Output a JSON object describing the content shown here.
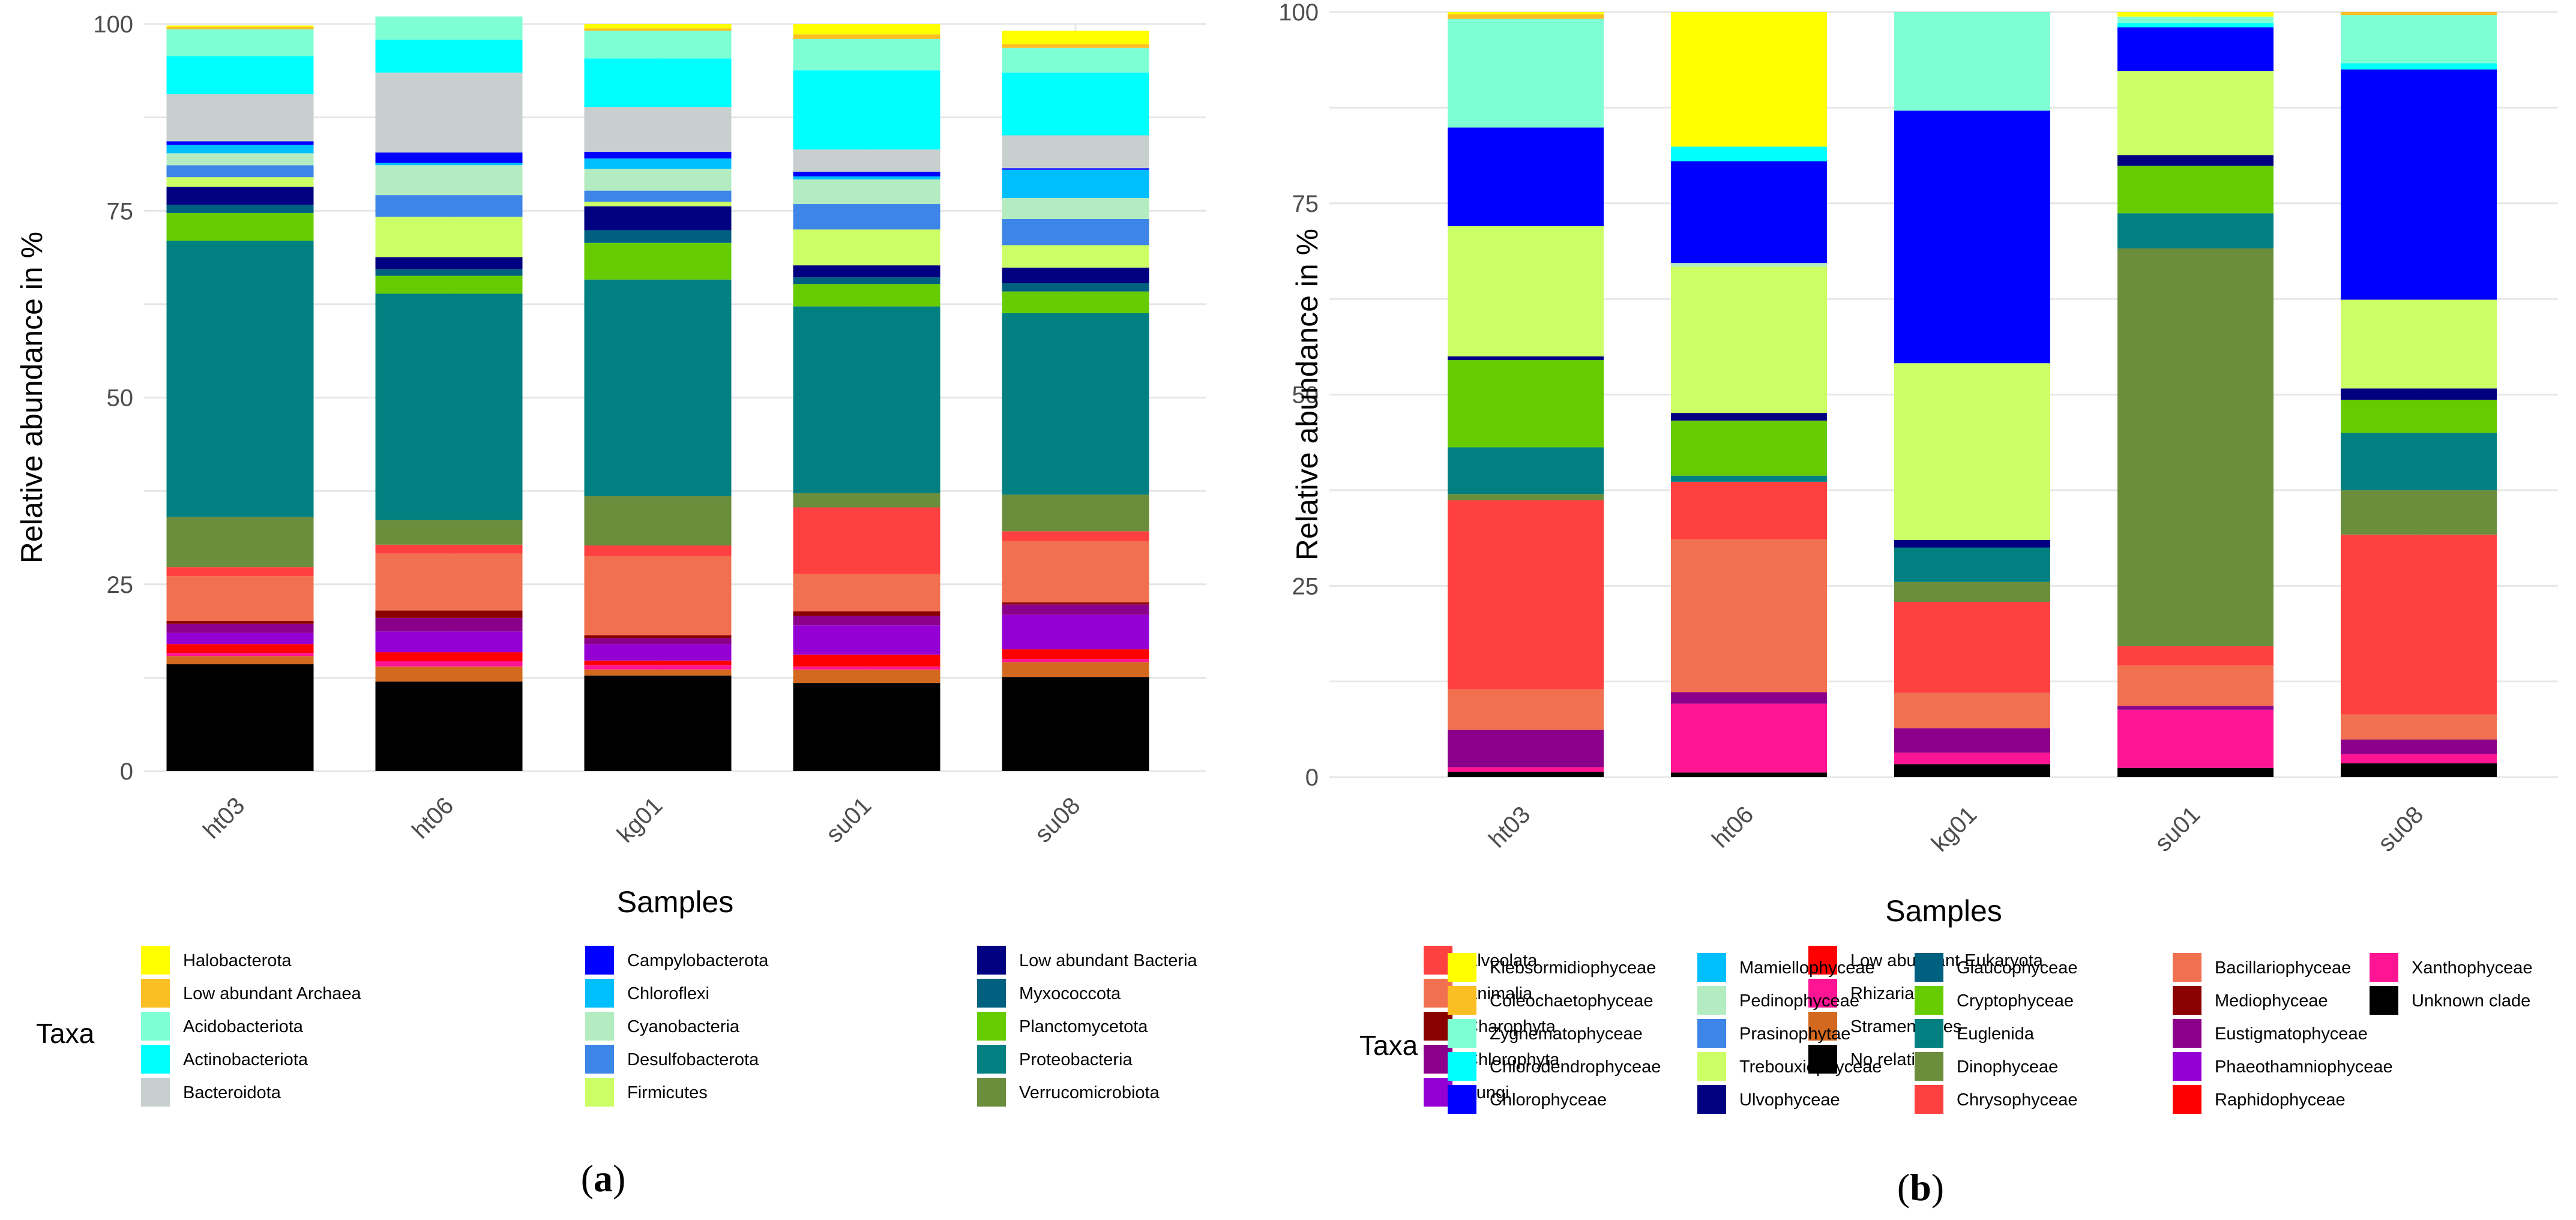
{
  "chart_data": [
    {
      "type": "bar",
      "stacked": true,
      "panel_label": "a",
      "xlabel": "Samples",
      "ylabel": "Relative abundance in %",
      "ylim": [
        0,
        100
      ],
      "yticks": [
        0,
        25,
        50,
        75,
        100
      ],
      "legend_title": "Taxa",
      "legend_position": "bottom",
      "grid": true,
      "categories": [
        "ht03",
        "ht06",
        "kg01",
        "su01",
        "su08"
      ],
      "series": [
        {
          "name": "No relative",
          "color": "#000000",
          "values": [
            14.3,
            12.0,
            12.8,
            11.8,
            12.6
          ]
        },
        {
          "name": "Stramenopiles",
          "color": "#d2691e",
          "values": [
            1.1,
            2.0,
            0.8,
            1.8,
            2.0
          ]
        },
        {
          "name": "Rhizaria",
          "color": "#ff1493",
          "values": [
            0.4,
            0.7,
            0.6,
            0.4,
            0.4
          ]
        },
        {
          "name": "Low abundant Eukaryota",
          "color": "#ff0000",
          "values": [
            1.2,
            1.2,
            0.6,
            1.6,
            1.3
          ]
        },
        {
          "name": "Fungi",
          "color": "#9400d3",
          "values": [
            1.5,
            2.8,
            2.2,
            3.9,
            4.6
          ]
        },
        {
          "name": "Chlorophyta",
          "color": "#8b008b",
          "values": [
            1.2,
            1.8,
            0.8,
            1.3,
            1.4
          ]
        },
        {
          "name": "Charophyta",
          "color": "#8b0000",
          "values": [
            0.4,
            1.0,
            0.4,
            0.6,
            0.3
          ]
        },
        {
          "name": "Animalia",
          "color": "#f07050",
          "values": [
            6.0,
            7.6,
            10.6,
            5.0,
            8.2
          ]
        },
        {
          "name": "Alveolata",
          "color": "#ff4040",
          "values": [
            1.2,
            1.2,
            1.4,
            8.9,
            1.3
          ]
        },
        {
          "name": "Verrucomicrobiota",
          "color": "#6b8e3c",
          "values": [
            6.7,
            3.3,
            6.6,
            1.9,
            4.9
          ]
        },
        {
          "name": "Proteobacteria",
          "color": "#008080",
          "values": [
            37.0,
            30.3,
            29.0,
            25.0,
            24.3
          ]
        },
        {
          "name": "Planctomycetota",
          "color": "#66cc00",
          "values": [
            3.7,
            2.4,
            4.9,
            3.0,
            2.9
          ]
        },
        {
          "name": "Myxococcota",
          "color": "#006080",
          "values": [
            1.1,
            0.9,
            1.7,
            0.9,
            1.1
          ]
        },
        {
          "name": "Low abundant Bacteria",
          "color": "#000080",
          "values": [
            2.4,
            1.6,
            3.2,
            1.6,
            2.1
          ]
        },
        {
          "name": "Firmicutes",
          "color": "#ccff66",
          "values": [
            1.3,
            5.4,
            0.6,
            4.8,
            3.0
          ]
        },
        {
          "name": "Desulfobacterota",
          "color": "#3d85e6",
          "values": [
            1.6,
            2.9,
            1.5,
            3.4,
            3.5
          ]
        },
        {
          "name": "Cyanobacteria",
          "color": "#b3ecc0",
          "values": [
            1.6,
            4.0,
            2.9,
            3.3,
            2.8
          ]
        },
        {
          "name": "Chloroflexi",
          "color": "#00bfff",
          "values": [
            1.1,
            0.3,
            1.4,
            0.4,
            3.8
          ]
        },
        {
          "name": "Campylobacterota",
          "color": "#0000ff",
          "values": [
            0.5,
            1.4,
            0.9,
            0.6,
            0.2
          ]
        },
        {
          "name": "Bacteroidota",
          "color": "#c8cfcf",
          "values": [
            6.3,
            10.7,
            6.0,
            3.0,
            4.4
          ]
        },
        {
          "name": "Actinobacteriota",
          "color": "#00ffff",
          "values": [
            5.1,
            4.4,
            6.5,
            10.6,
            8.4
          ]
        },
        {
          "name": "Acidobacteriota",
          "color": "#7fffd4",
          "values": [
            3.6,
            3.1,
            3.7,
            4.2,
            3.3
          ]
        },
        {
          "name": "Low abundant Archaea",
          "color": "#fbbf24",
          "values": [
            0.3,
            0.0,
            0.3,
            0.6,
            0.5
          ]
        },
        {
          "name": "Halobacterota",
          "color": "#ffff00",
          "values": [
            0.2,
            0.0,
            0.6,
            1.4,
            1.8
          ]
        }
      ]
    },
    {
      "type": "bar",
      "stacked": true,
      "panel_label": "b",
      "xlabel": "Samples",
      "ylabel": "Relative abundance in %",
      "ylim": [
        0,
        100
      ],
      "yticks": [
        0,
        25,
        50,
        75,
        100
      ],
      "legend_title": "Taxa",
      "legend_position": "bottom",
      "grid": true,
      "categories": [
        "ht03",
        "ht06",
        "kg01",
        "su01",
        "su08"
      ],
      "series": [
        {
          "name": "Unknown clade",
          "color": "#000000",
          "values": [
            0.7,
            0.6,
            1.7,
            1.2,
            1.8
          ]
        },
        {
          "name": "Xanthophyceae",
          "color": "#ff1493",
          "values": [
            0.6,
            9.0,
            1.5,
            7.6,
            1.2
          ]
        },
        {
          "name": "Raphidophyceae",
          "color": "#ff0000",
          "values": [
            0.0,
            0.0,
            0.0,
            0.0,
            0.0
          ]
        },
        {
          "name": "Phaeothamniophyceae",
          "color": "#9400d3",
          "values": [
            0.0,
            0.0,
            0.0,
            0.0,
            0.0
          ]
        },
        {
          "name": "Eustigmatophyceae",
          "color": "#8b008b",
          "values": [
            4.9,
            1.5,
            3.2,
            0.5,
            1.9
          ]
        },
        {
          "name": "Mediophyceae",
          "color": "#8b0000",
          "values": [
            0.0,
            0.0,
            0.0,
            0.0,
            0.0
          ]
        },
        {
          "name": "Bacillariophyceae",
          "color": "#f07050",
          "values": [
            5.3,
            20.0,
            4.6,
            5.3,
            3.3
          ]
        },
        {
          "name": "Chrysophyceae",
          "color": "#ff4040",
          "values": [
            24.7,
            7.5,
            11.9,
            2.5,
            23.5
          ]
        },
        {
          "name": "Dinophyceae",
          "color": "#6b8e3c",
          "values": [
            0.8,
            0.0,
            2.6,
            52.0,
            5.8
          ]
        },
        {
          "name": "Euglenida",
          "color": "#008080",
          "values": [
            6.1,
            0.8,
            4.5,
            4.6,
            7.5
          ]
        },
        {
          "name": "Cryptophyceae",
          "color": "#66cc00",
          "values": [
            11.4,
            7.2,
            0.0,
            6.2,
            4.3
          ]
        },
        {
          "name": "Glaucophyceae",
          "color": "#006080",
          "values": [
            0.0,
            0.0,
            0.0,
            0.0,
            0.0
          ]
        },
        {
          "name": "Ulvophyceae",
          "color": "#000080",
          "values": [
            0.5,
            1.0,
            1.0,
            1.4,
            1.5
          ]
        },
        {
          "name": "Trebouxiophyceae",
          "color": "#ccff66",
          "values": [
            17.0,
            19.1,
            23.1,
            11.0,
            11.6
          ]
        },
        {
          "name": "Prasinophytae",
          "color": "#3d85e6",
          "values": [
            0.0,
            0.0,
            0.0,
            0.0,
            0.0
          ]
        },
        {
          "name": "Pedinophyceae",
          "color": "#b3ecc0",
          "values": [
            0.0,
            0.5,
            0.0,
            0.0,
            0.0
          ]
        },
        {
          "name": "Mamiellophyceae",
          "color": "#00bfff",
          "values": [
            0.0,
            0.0,
            0.0,
            0.0,
            0.0
          ]
        },
        {
          "name": "Chlorophyceae",
          "color": "#0000ff",
          "values": [
            12.9,
            13.3,
            33.0,
            5.7,
            30.1
          ]
        },
        {
          "name": "Chlorodendrophyceae",
          "color": "#00ffff",
          "values": [
            0.0,
            1.9,
            0.0,
            0.6,
            0.8
          ]
        },
        {
          "name": "Zygnematophyceae",
          "color": "#7fffd4",
          "values": [
            14.2,
            0.0,
            12.9,
            0.8,
            6.3
          ]
        },
        {
          "name": "Coleochaetophyceae",
          "color": "#fbbf24",
          "values": [
            0.6,
            0.0,
            0.0,
            0.0,
            0.4
          ]
        },
        {
          "name": "Klebsormidiophyceae",
          "color": "#ffff00",
          "values": [
            0.3,
            17.6,
            0.0,
            0.6,
            0.0
          ]
        }
      ]
    }
  ]
}
